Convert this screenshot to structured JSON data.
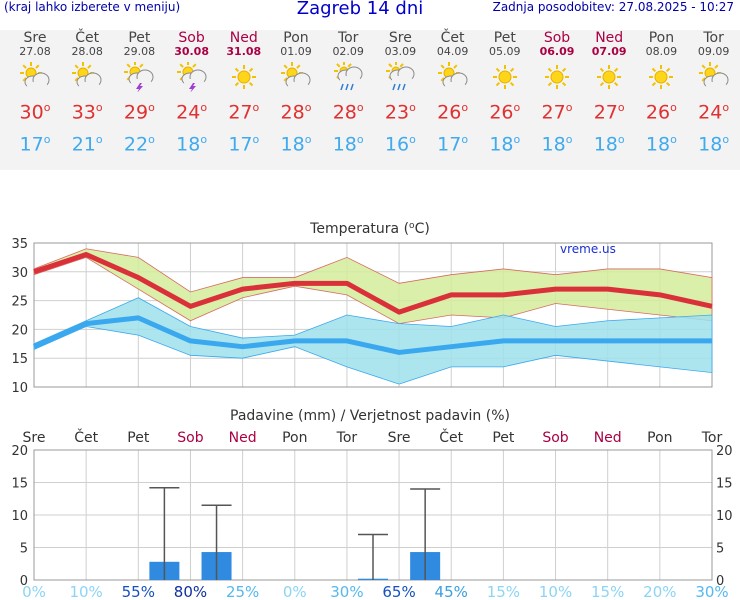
{
  "header": {
    "left": "(kraj lahko izberete v meniju)",
    "title": "Zagreb 14 dni",
    "right": "Zadnja posodobitev: 27.08.2025 - 10:27"
  },
  "days": [
    {
      "name": "Sre",
      "date": "27.08",
      "weekend": false,
      "icon": "partly-cloudy-icon",
      "max": "30",
      "min": "17"
    },
    {
      "name": "Čet",
      "date": "28.08",
      "weekend": false,
      "icon": "partly-cloudy-icon",
      "max": "33",
      "min": "21"
    },
    {
      "name": "Pet",
      "date": "29.08",
      "weekend": false,
      "icon": "thunderstorm-icon",
      "max": "29",
      "min": "22"
    },
    {
      "name": "Sob",
      "date": "30.08",
      "weekend": true,
      "icon": "thunderstorm-icon",
      "max": "24",
      "min": "18"
    },
    {
      "name": "Ned",
      "date": "31.08",
      "weekend": true,
      "icon": "sun-icon",
      "max": "27",
      "min": "17"
    },
    {
      "name": "Pon",
      "date": "01.09",
      "weekend": false,
      "icon": "partly-cloudy-icon",
      "max": "28",
      "min": "18"
    },
    {
      "name": "Tor",
      "date": "02.09",
      "weekend": false,
      "icon": "rain-icon",
      "max": "28",
      "min": "18"
    },
    {
      "name": "Sre",
      "date": "03.09",
      "weekend": false,
      "icon": "rain-icon",
      "max": "23",
      "min": "16"
    },
    {
      "name": "Čet",
      "date": "04.09",
      "weekend": false,
      "icon": "partly-cloudy-icon",
      "max": "26",
      "min": "17"
    },
    {
      "name": "Pet",
      "date": "05.09",
      "weekend": false,
      "icon": "sun-icon",
      "max": "26",
      "min": "18"
    },
    {
      "name": "Sob",
      "date": "06.09",
      "weekend": true,
      "icon": "sun-icon",
      "max": "27",
      "min": "18"
    },
    {
      "name": "Ned",
      "date": "07.09",
      "weekend": true,
      "icon": "sun-icon",
      "max": "27",
      "min": "18"
    },
    {
      "name": "Pon",
      "date": "08.09",
      "weekend": false,
      "icon": "sun-icon",
      "max": "26",
      "min": "18"
    },
    {
      "name": "Tor",
      "date": "09.09",
      "weekend": false,
      "icon": "partly-cloudy-icon",
      "max": "24",
      "min": "18"
    }
  ],
  "chart_data": [
    {
      "type": "line",
      "title": "Temperatura (",
      "title_unit": "C)",
      "watermark": "vreme.us",
      "ylim": [
        10,
        35
      ],
      "y_ticks": [
        "10",
        "15",
        "20",
        "25",
        "30",
        "35"
      ],
      "series": [
        {
          "values": [
            30,
            33,
            29,
            24,
            27,
            28,
            28,
            23,
            26,
            26,
            27,
            27,
            26,
            24
          ],
          "upper": [
            30.5,
            34,
            32.5,
            26.5,
            29,
            29,
            32.5,
            28,
            29.5,
            30.5,
            29.5,
            30.5,
            30.5,
            29
          ],
          "lower": [
            29.5,
            32.5,
            27,
            21.5,
            25.5,
            27.5,
            26,
            21,
            22.5,
            22,
            24.5,
            23.5,
            22.5,
            21.5
          ]
        },
        {
          "values": [
            17,
            21,
            22,
            18,
            17,
            18,
            18,
            16,
            17,
            18,
            18,
            18,
            18,
            18
          ],
          "upper": [
            17.5,
            21.5,
            25.5,
            20.5,
            18.5,
            19,
            22.5,
            21,
            20.5,
            22.5,
            20.5,
            21.5,
            22,
            22.5
          ],
          "lower": [
            16.5,
            20.5,
            19,
            15.5,
            15,
            17,
            13.5,
            10.5,
            13.5,
            13.5,
            15.5,
            14.5,
            13.5,
            12.5
          ]
        }
      ],
      "colors": {
        "max_line": "#d9303a",
        "min_line": "#3aa8ee",
        "max_band": "#d4ec9a",
        "min_band": "#9fe0ec"
      }
    },
    {
      "type": "bar",
      "title": "Padavine (mm) / Verjetnost padavin (%)",
      "categories": [
        "Sre",
        "Čet",
        "Pet",
        "Sob",
        "Ned",
        "Pon",
        "Tor",
        "Sre",
        "Čet",
        "Pet",
        "Sob",
        "Ned",
        "Pon",
        "Tor"
      ],
      "values": [
        0,
        0,
        2.8,
        4.3,
        0,
        0,
        0.2,
        4.3,
        0,
        0,
        0,
        0,
        0,
        0
      ],
      "error_high": [
        0,
        0,
        14.2,
        11.5,
        0,
        0,
        7,
        14,
        0,
        0,
        0,
        0,
        0,
        0
      ],
      "probability": [
        "0%",
        "10%",
        "55%",
        "80%",
        "25%",
        "0%",
        "30%",
        "65%",
        "45%",
        "15%",
        "10%",
        "15%",
        "20%",
        "30%"
      ],
      "ylim": [
        0,
        20
      ],
      "y_ticks": [
        "0",
        "5",
        "10",
        "15",
        "20"
      ]
    }
  ]
}
